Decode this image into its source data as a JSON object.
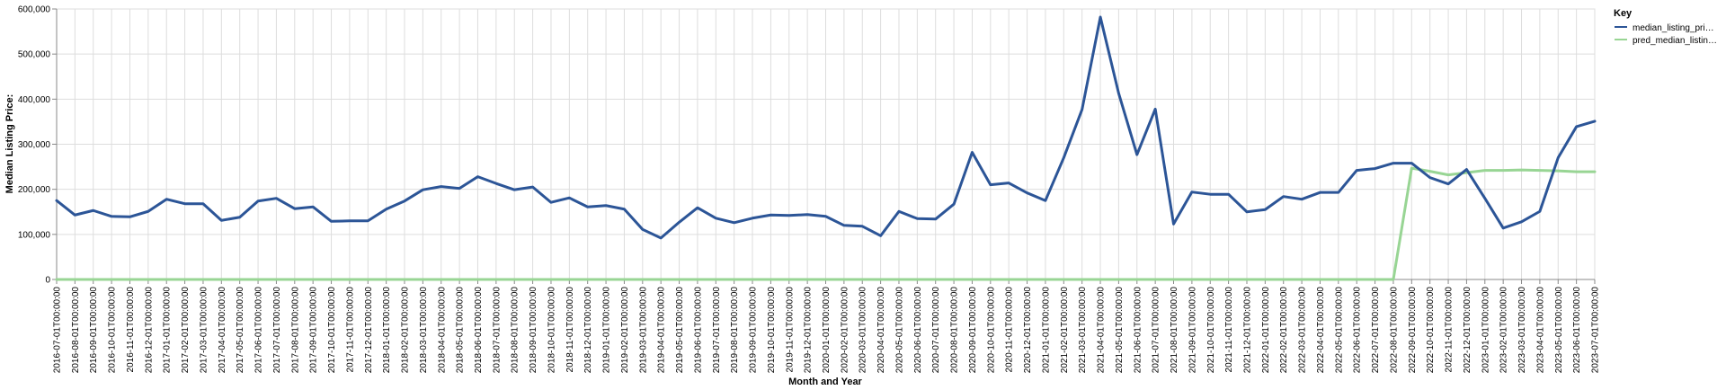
{
  "chart_data": {
    "type": "line",
    "xlabel": "Month and Year",
    "ylabel": "Median Listing Price:",
    "ylim": [
      0,
      600000
    ],
    "yticks": [
      "0",
      "100,000",
      "200,000",
      "300,000",
      "400,000",
      "500,000",
      "600,000"
    ],
    "grid": true,
    "legend": {
      "title": "Key",
      "position": "top-right",
      "entries": [
        "median_listing_pri…",
        "pred_median_listin…"
      ]
    },
    "categories": [
      "2016-07-01T00:00:00",
      "2016-08-01T00:00:00",
      "2016-09-01T00:00:00",
      "2016-10-01T00:00:00",
      "2016-11-01T00:00:00",
      "2016-12-01T00:00:00",
      "2017-01-01T00:00:00",
      "2017-02-01T00:00:00",
      "2017-03-01T00:00:00",
      "2017-04-01T00:00:00",
      "2017-05-01T00:00:00",
      "2017-06-01T00:00:00",
      "2017-07-01T00:00:00",
      "2017-08-01T00:00:00",
      "2017-09-01T00:00:00",
      "2017-10-01T00:00:00",
      "2017-11-01T00:00:00",
      "2017-12-01T00:00:00",
      "2018-01-01T00:00:00",
      "2018-02-01T00:00:00",
      "2018-03-01T00:00:00",
      "2018-04-01T00:00:00",
      "2018-05-01T00:00:00",
      "2018-06-01T00:00:00",
      "2018-07-01T00:00:00",
      "2018-08-01T00:00:00",
      "2018-09-01T00:00:00",
      "2018-10-01T00:00:00",
      "2018-11-01T00:00:00",
      "2018-12-01T00:00:00",
      "2019-01-01T00:00:00",
      "2019-02-01T00:00:00",
      "2019-03-01T00:00:00",
      "2019-04-01T00:00:00",
      "2019-05-01T00:00:00",
      "2019-06-01T00:00:00",
      "2019-07-01T00:00:00",
      "2019-08-01T00:00:00",
      "2019-09-01T00:00:00",
      "2019-10-01T00:00:00",
      "2019-11-01T00:00:00",
      "2019-12-01T00:00:00",
      "2020-01-01T00:00:00",
      "2020-02-01T00:00:00",
      "2020-03-01T00:00:00",
      "2020-04-01T00:00:00",
      "2020-05-01T00:00:00",
      "2020-06-01T00:00:00",
      "2020-07-01T00:00:00",
      "2020-08-01T00:00:00",
      "2020-09-01T00:00:00",
      "2020-10-01T00:00:00",
      "2020-11-01T00:00:00",
      "2020-12-01T00:00:00",
      "2021-01-01T00:00:00",
      "2021-02-01T00:00:00",
      "2021-03-01T00:00:00",
      "2021-04-01T00:00:00",
      "2021-05-01T00:00:00",
      "2021-06-01T00:00:00",
      "2021-07-01T00:00:00",
      "2021-08-01T00:00:00",
      "2021-09-01T00:00:00",
      "2021-10-01T00:00:00",
      "2021-11-01T00:00:00",
      "2021-12-01T00:00:00",
      "2022-01-01T00:00:00",
      "2022-02-01T00:00:00",
      "2022-03-01T00:00:00",
      "2022-04-01T00:00:00",
      "2022-05-01T00:00:00",
      "2022-06-01T00:00:00",
      "2022-07-01T00:00:00",
      "2022-08-01T00:00:00",
      "2022-09-01T00:00:00",
      "2022-10-01T00:00:00",
      "2022-11-01T00:00:00",
      "2022-12-01T00:00:00",
      "2023-01-01T00:00:00",
      "2023-02-01T00:00:00",
      "2023-03-01T00:00:00",
      "2023-04-01T00:00:00",
      "2023-05-01T00:00:00",
      "2023-06-01T00:00:00",
      "2023-07-01T00:00:00"
    ],
    "series": [
      {
        "name": "median_listing_pri…",
        "color": "#2c5597",
        "values": [
          175000,
          143000,
          153000,
          140000,
          139000,
          151000,
          178000,
          168000,
          168000,
          131000,
          138000,
          174000,
          180000,
          157000,
          161000,
          129000,
          130000,
          130000,
          156000,
          174000,
          199000,
          206000,
          202000,
          228000,
          213000,
          199000,
          205000,
          171000,
          181000,
          161000,
          164000,
          156000,
          111000,
          92000,
          127000,
          159000,
          136000,
          126000,
          136000,
          143000,
          142000,
          144000,
          140000,
          120000,
          118000,
          97000,
          151000,
          135000,
          134000,
          167000,
          282000,
          210000,
          214000,
          192000,
          175000,
          270000,
          377000,
          582000,
          413000,
          277000,
          378000,
          123000,
          194000,
          189000,
          189000,
          150000,
          155000,
          184000,
          178000,
          193000,
          193000,
          242000,
          246000,
          258000,
          258000,
          226000,
          212000,
          244000,
          180000,
          114000,
          128000,
          151000,
          270000,
          339000,
          351000
        ]
      },
      {
        "name": "pred_median_listin…",
        "color": "#98d594",
        "values": [
          0,
          0,
          0,
          0,
          0,
          0,
          0,
          0,
          0,
          0,
          0,
          0,
          0,
          0,
          0,
          0,
          0,
          0,
          0,
          0,
          0,
          0,
          0,
          0,
          0,
          0,
          0,
          0,
          0,
          0,
          0,
          0,
          0,
          0,
          0,
          0,
          0,
          0,
          0,
          0,
          0,
          0,
          0,
          0,
          0,
          0,
          0,
          0,
          0,
          0,
          0,
          0,
          0,
          0,
          0,
          0,
          0,
          0,
          0,
          0,
          0,
          0,
          0,
          0,
          0,
          0,
          0,
          0,
          0,
          0,
          0,
          0,
          0,
          0,
          247000,
          240000,
          232000,
          237000,
          242000,
          242000,
          243000,
          242000,
          241000,
          239000,
          239000
        ]
      }
    ]
  }
}
